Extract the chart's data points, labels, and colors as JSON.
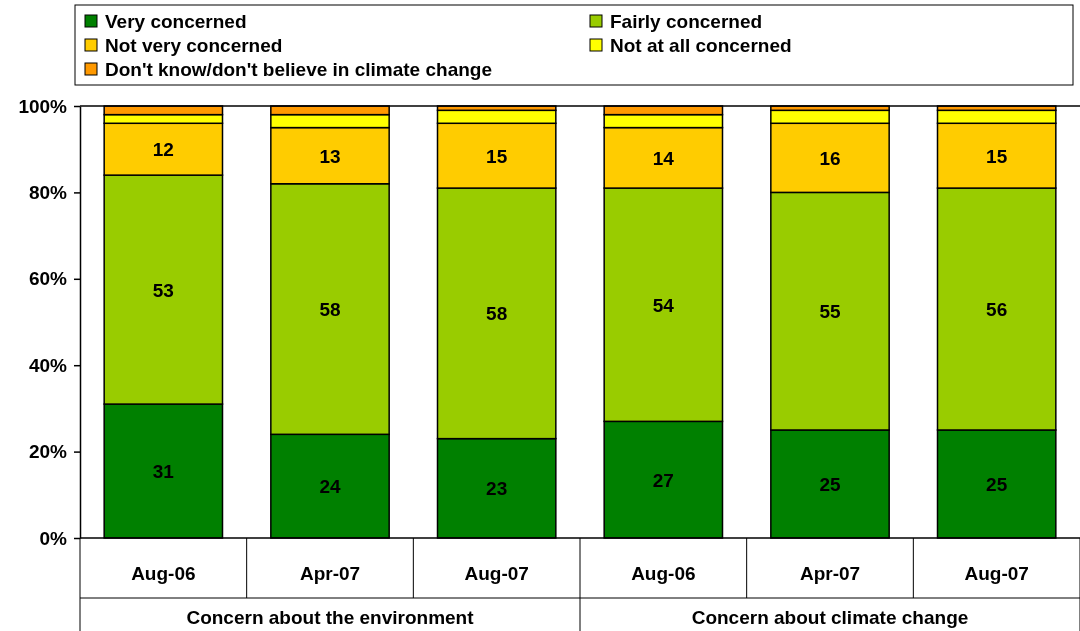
{
  "chart_data": {
    "type": "bar",
    "stacked": true,
    "categories": [
      "Aug-06",
      "Apr-07",
      "Aug-07",
      "Aug-06",
      "Apr-07",
      "Aug-07"
    ],
    "series": [
      {
        "name": "Very concerned",
        "color": "#008000",
        "values": [
          31,
          24,
          23,
          27,
          25,
          25
        ],
        "value_labels": [
          "31",
          "24",
          "23",
          "27",
          "25",
          "25"
        ]
      },
      {
        "name": "Fairly concerned",
        "color": "#99cc00",
        "values": [
          53,
          58,
          58,
          54,
          55,
          56
        ],
        "value_labels": [
          "53",
          "58",
          "58",
          "54",
          "55",
          "56"
        ]
      },
      {
        "name": "Not very concerned",
        "color": "#ffcc00",
        "values": [
          12,
          13,
          15,
          14,
          16,
          15
        ],
        "value_labels": [
          "12",
          "13",
          "15",
          "14",
          "16",
          "15"
        ]
      },
      {
        "name": "Not at all concerned",
        "color": "#ffff00",
        "values": [
          2,
          3,
          3,
          3,
          3,
          3
        ]
      },
      {
        "name": "Don't know/don't believe in climate change",
        "color": "#ff9900",
        "values": [
          2,
          2,
          1,
          2,
          1,
          1
        ]
      }
    ],
    "ylim": [
      0,
      100
    ],
    "yticks": [
      {
        "value": 0,
        "label": "0%"
      },
      {
        "value": 20,
        "label": "20%"
      },
      {
        "value": 40,
        "label": "40%"
      },
      {
        "value": 60,
        "label": "60%"
      },
      {
        "value": 80,
        "label": "80%"
      },
      {
        "value": 100,
        "label": "100%"
      }
    ],
    "annotations": [
      "Concern about the environment",
      "Concern about climate change"
    ],
    "legend": "top",
    "grid": false
  }
}
